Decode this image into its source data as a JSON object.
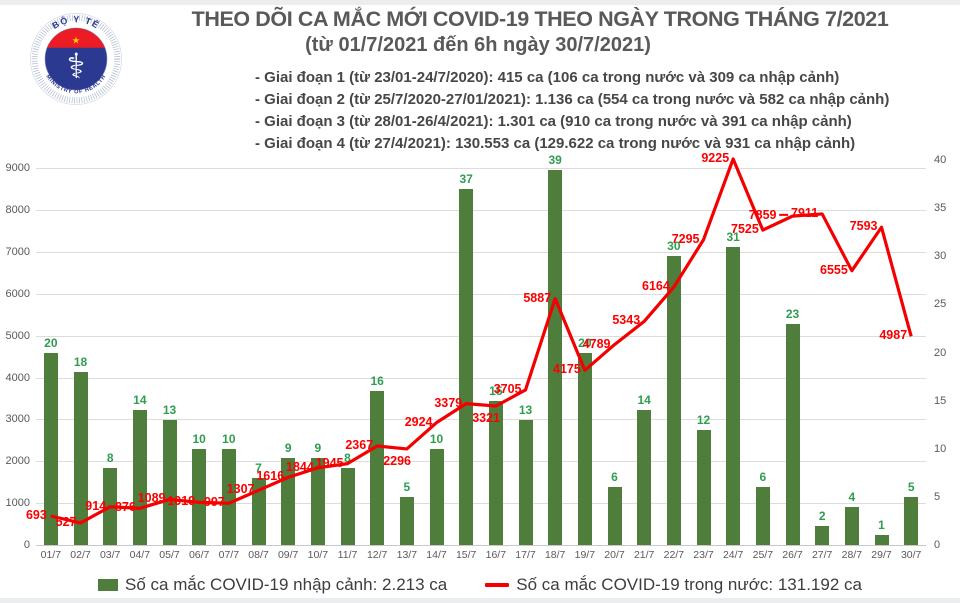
{
  "logo": {
    "top_text": "BỘ Y TẾ",
    "bottom_text": "MINISTRY OF HEALTH",
    "symbol": "staff-of-asclepius-with-star"
  },
  "header": {
    "title": "THEO DÕI CA MẮC MỚI COVID-19 THEO NGÀY TRONG THÁNG 7/2021",
    "subtitle": "(từ 01/7/2021 đến 6h ngày 30/7/2021)",
    "bullets": [
      "- Giai đoạn 1 (từ 23/01-24/7/2020): 415 ca (106 ca trong nước và 309 ca nhập cảnh)",
      "- Giai đoạn 2 (từ 25/7/2020-27/01/2021): 1.136 ca (554 ca trong nước và 582 ca nhập cảnh)",
      "- Giai đoạn 3 (từ 28/01-26/4/2021): 1.301 ca (910 ca trong nước và 391 ca nhập cảnh)",
      "- Giai đoạn 4 (từ 27/4/2021): 130.553 ca (129.622 ca trong nước và 931 ca nhập cảnh)"
    ]
  },
  "chart_data": {
    "type": "combo",
    "categories": [
      "01/7",
      "02/7",
      "03/7",
      "04/7",
      "05/7",
      "06/7",
      "07/7",
      "08/7",
      "09/7",
      "10/7",
      "11/7",
      "12/7",
      "13/7",
      "14/7",
      "15/7",
      "16/7",
      "17/7",
      "18/7",
      "19/7",
      "20/7",
      "21/7",
      "22/7",
      "23/7",
      "24/7",
      "25/7",
      "26/7",
      "27/7",
      "28/7",
      "29/7",
      "30/7"
    ],
    "series": [
      {
        "name": "Số ca mắc COVID-19 nhập cảnh",
        "type": "bar",
        "axis": "right",
        "color": "#4e7d3c",
        "label_color": "#2e9e50",
        "values": [
          20,
          18,
          8,
          14,
          13,
          10,
          10,
          7,
          9,
          9,
          8,
          16,
          5,
          10,
          37,
          15,
          13,
          39,
          20,
          6,
          14,
          30,
          12,
          31,
          6,
          23,
          2,
          4,
          1,
          5
        ]
      },
      {
        "name": "Số ca mắc COVID-19 trong nước",
        "type": "line",
        "axis": "left",
        "color": "#f40000",
        "label_color": "#fb0000",
        "values": [
          693,
          527,
          914,
          876,
          1089,
          1019,
          997,
          1307,
          1616,
          1844,
          1945,
          2367,
          2296,
          2924,
          3379,
          3321,
          3705,
          5887,
          4175,
          4789,
          5343,
          6164,
          7295,
          9225,
          7525,
          7859,
          7911,
          6555,
          7593,
          4987
        ],
        "label_positions": [
          "left",
          "left",
          "left",
          "left",
          "left",
          "left",
          "left",
          "left",
          "left",
          "left",
          "left",
          "left",
          "below",
          "left",
          "left",
          "below",
          "left",
          "left",
          "left",
          "left",
          "left",
          "left",
          "left",
          "left",
          "left",
          "left-dash",
          "left",
          "left",
          "left",
          "left"
        ]
      }
    ],
    "left_axis": {
      "min": 0,
      "max": 9000,
      "step": 1000,
      "top_value": 9200
    },
    "right_axis": {
      "min": 0,
      "max": 40,
      "step": 5
    },
    "grid": "horizontal gridlines every 1000 (left axis)",
    "legend_position": "bottom",
    "title": "THEO DÕI CA MẮC MỚI COVID-19 THEO NGÀY TRONG THÁNG 7/2021"
  },
  "legend": {
    "items": [
      {
        "label": "Số ca mắc COVID-19 nhập cảnh: 2.213 ca",
        "marker": "green-bar-swatch",
        "color": "#4e7d3c"
      },
      {
        "label": "Số ca mắc COVID-19 trong nước: 131.192 ca",
        "marker": "red-line-swatch",
        "color": "#f40000"
      }
    ]
  },
  "colors": {
    "bar": "#4e7d3c",
    "bar_label": "#2e9e50",
    "line": "#f40000",
    "line_label": "#fb0000",
    "axis_text": "#595959",
    "grid": "#dcdcdc",
    "title": "#595959",
    "logo_navy": "#2b3990",
    "logo_red": "#ec1c24",
    "logo_star": "#ffd100"
  }
}
